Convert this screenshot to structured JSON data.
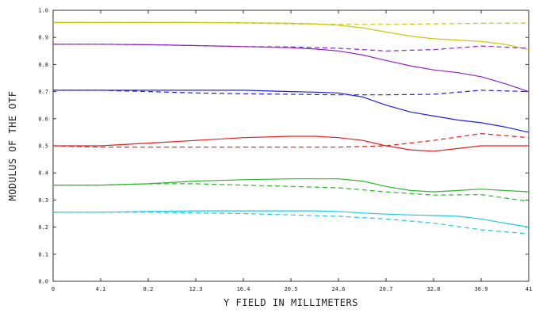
{
  "chart_data": {
    "type": "line",
    "title": "",
    "xlabel": "Y FIELD IN MILLIMETERS",
    "ylabel": "MODULUS OF THE OTF",
    "xlim": [
      0,
      41
    ],
    "ylim": [
      0,
      1.0
    ],
    "x_tick_labels": [
      "0",
      "4.1",
      "8.2",
      "12.3",
      "16.4",
      "20.5",
      "24.6",
      "28.7",
      "32.8",
      "36.9",
      "41"
    ],
    "y_tick_labels": [
      "0.0",
      "0.1",
      "0.2",
      "0.3",
      "0.4",
      "0.5",
      "0.6",
      "0.7",
      "0.8",
      "0.9",
      "1.0"
    ],
    "grid": false,
    "series": [
      {
        "color": "#c8c800",
        "dash": false,
        "x": [
          0,
          4.1,
          8.2,
          12.3,
          16.4,
          20.5,
          22.6,
          24.6,
          26.7,
          28.7,
          30.8,
          32.8,
          34.9,
          36.9,
          38.9,
          41
        ],
        "y": [
          0.955,
          0.955,
          0.955,
          0.955,
          0.954,
          0.952,
          0.95,
          0.945,
          0.935,
          0.92,
          0.905,
          0.895,
          0.89,
          0.885,
          0.875,
          0.855
        ]
      },
      {
        "color": "#c8c800",
        "dash": true,
        "x": [
          0,
          4.1,
          8.2,
          12.3,
          16.4,
          20.5,
          24.6,
          28.7,
          32.8,
          36.9,
          41
        ],
        "y": [
          0.955,
          0.955,
          0.955,
          0.955,
          0.953,
          0.95,
          0.948,
          0.948,
          0.95,
          0.952,
          0.953
        ]
      },
      {
        "color": "#8e24c8",
        "dash": false,
        "x": [
          0,
          4.1,
          8.2,
          12.3,
          16.4,
          20.5,
          22.6,
          24.6,
          26.7,
          28.7,
          30.8,
          32.8,
          34.9,
          36.9,
          38.9,
          41
        ],
        "y": [
          0.875,
          0.875,
          0.873,
          0.87,
          0.866,
          0.862,
          0.857,
          0.85,
          0.835,
          0.815,
          0.795,
          0.78,
          0.77,
          0.755,
          0.73,
          0.7
        ]
      },
      {
        "color": "#8e24c8",
        "dash": true,
        "x": [
          0,
          4.1,
          8.2,
          12.3,
          16.4,
          20.5,
          24.6,
          28.7,
          32.8,
          36.9,
          41
        ],
        "y": [
          0.875,
          0.875,
          0.873,
          0.87,
          0.866,
          0.865,
          0.86,
          0.85,
          0.855,
          0.868,
          0.86
        ]
      },
      {
        "color": "#2020e0",
        "dash": false,
        "x": [
          0,
          4.1,
          8.2,
          12.3,
          16.4,
          20.5,
          22.6,
          24.6,
          26.7,
          28.7,
          30.8,
          32.8,
          34.9,
          36.9,
          38.9,
          41
        ],
        "y": [
          0.705,
          0.705,
          0.705,
          0.705,
          0.705,
          0.7,
          0.698,
          0.695,
          0.68,
          0.65,
          0.625,
          0.61,
          0.595,
          0.585,
          0.57,
          0.55
        ]
      },
      {
        "color": "#2020e0",
        "dash": true,
        "x": [
          0,
          4.1,
          8.2,
          12.3,
          16.4,
          20.5,
          24.6,
          28.7,
          32.8,
          36.9,
          41
        ],
        "y": [
          0.705,
          0.705,
          0.7,
          0.695,
          0.692,
          0.69,
          0.688,
          0.688,
          0.69,
          0.705,
          0.7
        ]
      },
      {
        "color": "#e02020",
        "dash": false,
        "x": [
          0,
          4.1,
          8.2,
          12.3,
          16.4,
          20.5,
          22.6,
          24.6,
          26.7,
          28.7,
          30.8,
          32.8,
          34.9,
          36.9,
          38.9,
          41
        ],
        "y": [
          0.5,
          0.5,
          0.51,
          0.52,
          0.53,
          0.535,
          0.535,
          0.53,
          0.52,
          0.5,
          0.485,
          0.48,
          0.49,
          0.5,
          0.5,
          0.5
        ]
      },
      {
        "color": "#e02020",
        "dash": true,
        "x": [
          0,
          4.1,
          8.2,
          12.3,
          16.4,
          20.5,
          24.6,
          28.7,
          32.8,
          36.9,
          41
        ],
        "y": [
          0.5,
          0.495,
          0.495,
          0.495,
          0.495,
          0.495,
          0.495,
          0.5,
          0.52,
          0.545,
          0.53
        ]
      },
      {
        "color": "#2ab82a",
        "dash": false,
        "x": [
          0,
          4.1,
          8.2,
          12.3,
          16.4,
          20.5,
          22.6,
          24.6,
          26.7,
          28.7,
          30.8,
          32.8,
          34.9,
          36.9,
          38.9,
          41
        ],
        "y": [
          0.355,
          0.355,
          0.36,
          0.37,
          0.375,
          0.378,
          0.378,
          0.378,
          0.37,
          0.35,
          0.335,
          0.33,
          0.335,
          0.34,
          0.335,
          0.33
        ]
      },
      {
        "color": "#2ab82a",
        "dash": true,
        "x": [
          0,
          4.1,
          8.2,
          12.3,
          16.4,
          20.5,
          24.6,
          28.7,
          32.8,
          36.9,
          41
        ],
        "y": [
          0.355,
          0.355,
          0.36,
          0.36,
          0.355,
          0.35,
          0.345,
          0.33,
          0.318,
          0.32,
          0.295
        ]
      },
      {
        "color": "#20c8e0",
        "dash": false,
        "x": [
          0,
          4.1,
          8.2,
          12.3,
          16.4,
          20.5,
          22.6,
          24.6,
          26.7,
          28.7,
          30.8,
          32.8,
          34.9,
          36.9,
          38.9,
          41
        ],
        "y": [
          0.255,
          0.255,
          0.258,
          0.26,
          0.26,
          0.26,
          0.26,
          0.258,
          0.252,
          0.248,
          0.245,
          0.243,
          0.24,
          0.23,
          0.215,
          0.2
        ]
      },
      {
        "color": "#20c8e0",
        "dash": true,
        "x": [
          0,
          4.1,
          8.2,
          12.3,
          16.4,
          20.5,
          24.6,
          28.7,
          32.8,
          36.9,
          41
        ],
        "y": [
          0.255,
          0.255,
          0.255,
          0.252,
          0.25,
          0.245,
          0.24,
          0.23,
          0.215,
          0.19,
          0.175
        ]
      }
    ]
  }
}
